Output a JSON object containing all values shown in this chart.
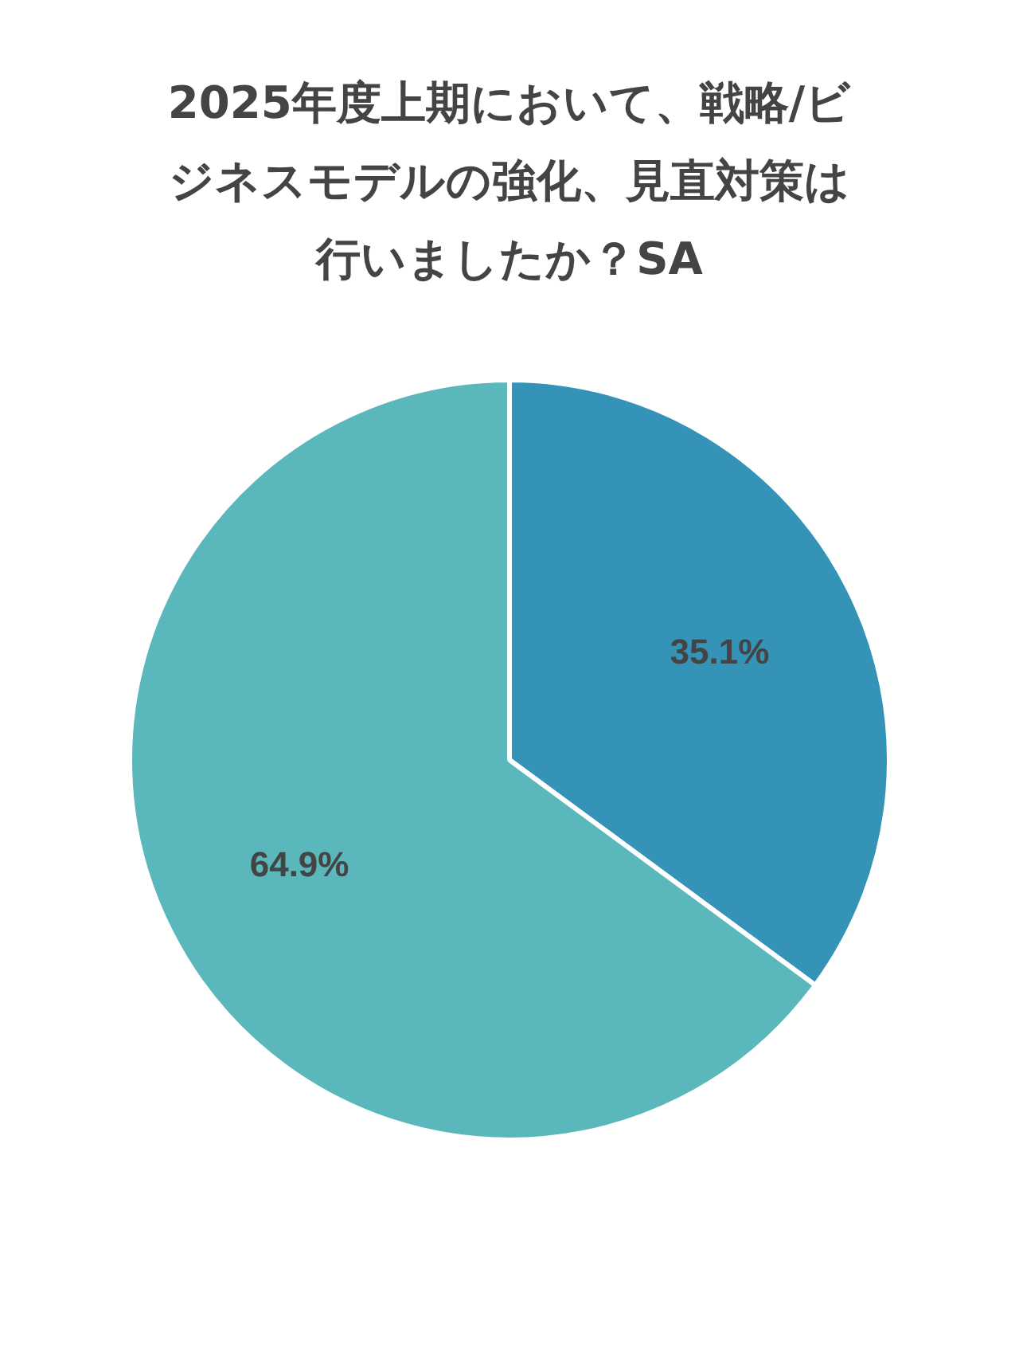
{
  "chart_data": {
    "type": "pie",
    "title": "2025年度上期において、戦略/ビジネスモデルの強化、見直対策は行いましたか？SA",
    "categories": [
      null,
      null
    ],
    "values": [
      35.1,
      64.9
    ],
    "colors": [
      "#3593b8",
      "#5ab7bc"
    ],
    "value_labels": [
      "35.1%",
      "64.9%"
    ],
    "legend": false
  }
}
